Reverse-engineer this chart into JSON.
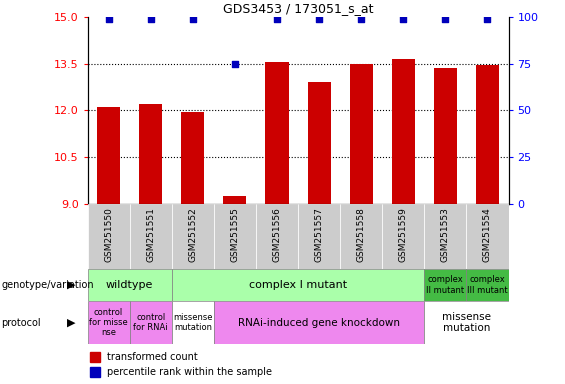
{
  "title": "GDS3453 / 173051_s_at",
  "samples": [
    "GSM251550",
    "GSM251551",
    "GSM251552",
    "GSM251555",
    "GSM251556",
    "GSM251557",
    "GSM251558",
    "GSM251559",
    "GSM251553",
    "GSM251554"
  ],
  "bar_values": [
    12.1,
    12.2,
    11.95,
    9.25,
    13.55,
    12.9,
    13.5,
    13.65,
    13.35,
    13.47
  ],
  "percentile_values": [
    99,
    99,
    99,
    75,
    99,
    99,
    99,
    99,
    99,
    99
  ],
  "ylim_left": [
    9,
    15
  ],
  "ylim_right": [
    0,
    100
  ],
  "yticks_left": [
    9,
    10.5,
    12,
    13.5,
    15
  ],
  "yticks_right": [
    0,
    25,
    50,
    75,
    100
  ],
  "bar_color": "#cc0000",
  "dot_color": "#0000bb",
  "grid_dotted_lines": [
    10.5,
    12,
    13.5
  ],
  "genotype_blocks": [
    {
      "start": 0,
      "end": 2,
      "color": "#aaffaa",
      "text": "wildtype",
      "fontsize": 8
    },
    {
      "start": 2,
      "end": 8,
      "color": "#aaffaa",
      "text": "complex I mutant",
      "fontsize": 8
    },
    {
      "start": 8,
      "end": 9,
      "color": "#44bb44",
      "text": "complex\nII mutant",
      "fontsize": 6
    },
    {
      "start": 9,
      "end": 10,
      "color": "#44bb44",
      "text": "complex\nIII mutant",
      "fontsize": 6
    }
  ],
  "protocol_blocks": [
    {
      "start": 0,
      "end": 1,
      "color": "#ee88ee",
      "text": "control\nfor misse\nnse",
      "fontsize": 6
    },
    {
      "start": 1,
      "end": 2,
      "color": "#ee88ee",
      "text": "control\nfor RNAi",
      "fontsize": 6
    },
    {
      "start": 2,
      "end": 3,
      "color": "#ffffff",
      "text": "missense\nmutation",
      "fontsize": 6
    },
    {
      "start": 3,
      "end": 8,
      "color": "#ee88ee",
      "text": "RNAi-induced gene knockdown",
      "fontsize": 7.5
    },
    {
      "start": 8,
      "end": 10,
      "color": "#ffffff",
      "text": "missense\nmutation",
      "fontsize": 7.5
    }
  ],
  "geno_label": "genotype/variation",
  "proto_label": "protocol",
  "legend_items": [
    {
      "color": "#cc0000",
      "text": "transformed count"
    },
    {
      "color": "#0000bb",
      "text": "percentile rank within the sample"
    }
  ],
  "tick_bg_color": "#cccccc"
}
